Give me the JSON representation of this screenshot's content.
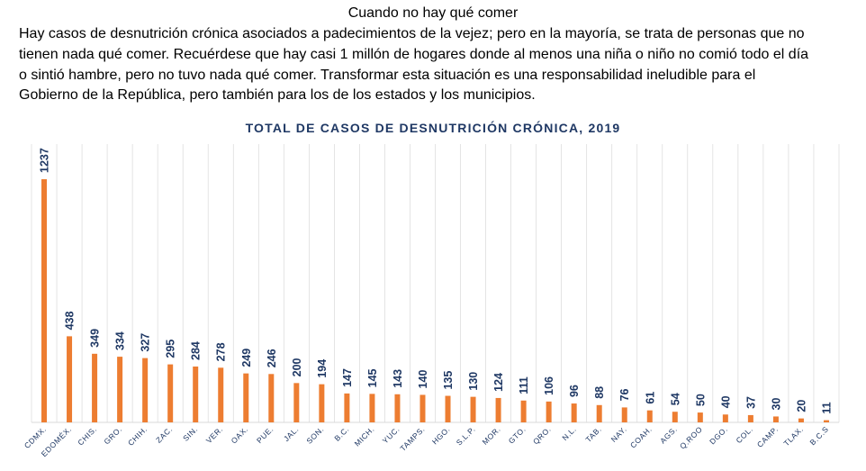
{
  "page": {
    "title": "Cuando no hay qué comer",
    "lines": [
      "Hay casos de desnutrición crónica asociados a padecimientos de la vejez; pero en la mayoría, se trata de personas que no",
      "tienen nada qué comer. Recuérdese que hay casi 1 millón de hogares donde al menos una niña o niño no comió todo el día",
      "o sintió hambre, pero no tuvo nada qué comer. Transformar esta situación es una responsabilidad ineludible para el",
      "Gobierno de la República, pero también para los de los estados y los municipios."
    ]
  },
  "chart_data": {
    "type": "bar",
    "title": "TOTAL DE CASOS DE DESNUTRICIÓN CRÓNICA, 2019",
    "categories": [
      "CDMX.",
      "EDOMÉX.",
      "CHIS.",
      "GRO.",
      "CHIH.",
      "ZAC.",
      "SIN.",
      "VER.",
      "OAX.",
      "PUE.",
      "JAL.",
      "SON.",
      "B.C.",
      "MICH.",
      "YUC.",
      "TAMPS.",
      "HGO.",
      "S.L.P.",
      "MOR.",
      "GTO.",
      "QRO.",
      "N.L.",
      "TAB.",
      "NAY.",
      "COAH.",
      "AGS.",
      "Q.ROO",
      "DGO.",
      "COL.",
      "CAMP.",
      "TLAX.",
      "B.C.S"
    ],
    "values": [
      1237,
      438,
      349,
      334,
      327,
      295,
      284,
      278,
      249,
      246,
      200,
      194,
      147,
      145,
      143,
      140,
      135,
      130,
      124,
      111,
      106,
      96,
      88,
      76,
      61,
      54,
      50,
      40,
      37,
      30,
      20,
      11
    ],
    "xlabel": "",
    "ylabel": "",
    "ylim": [
      0,
      1237
    ],
    "grid": "vertical",
    "colors": {
      "bar": "#ed7d31",
      "grid": "#d9d9d9",
      "labels": "#1f3864"
    }
  }
}
